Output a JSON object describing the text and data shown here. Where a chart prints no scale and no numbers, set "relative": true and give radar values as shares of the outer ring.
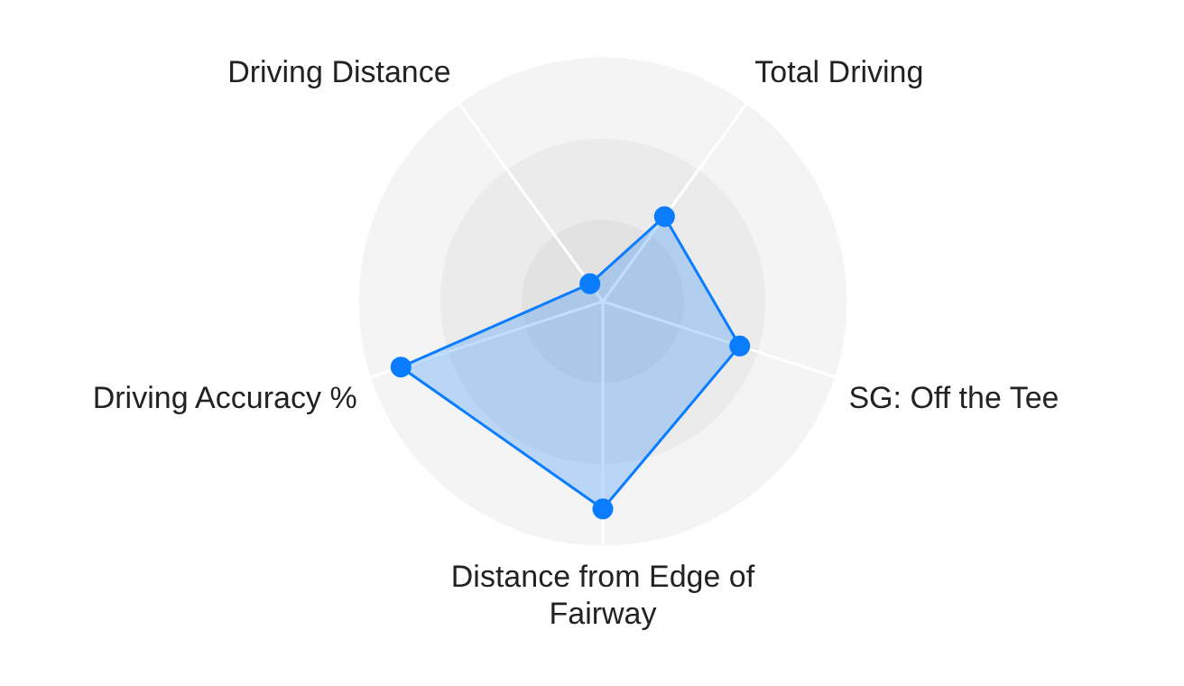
{
  "chart_data": {
    "type": "radar",
    "relative": true,
    "categories": [
      "Total Driving",
      "SG: Off the Tee",
      "Distance from Edge of Fairway",
      "Driving Accuracy %",
      "Driving Distance"
    ],
    "series": [
      {
        "color": "#0a7cff",
        "values": [
          0.43,
          0.59,
          0.85,
          0.87,
          0.09
        ]
      }
    ],
    "grid": true,
    "legend": false,
    "marker": "circle"
  }
}
